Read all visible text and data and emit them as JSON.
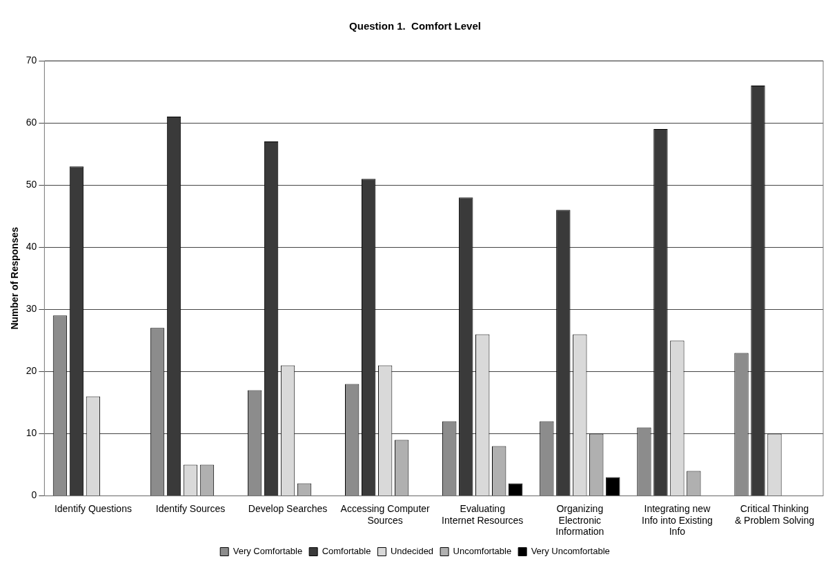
{
  "chart_data": {
    "type": "bar",
    "title": "Question 1.  Comfort Level",
    "ylabel": "Number of Responses",
    "categories": [
      "Identify Questions",
      "Identify Sources",
      "Develop Searches",
      "Accessing Computer Sources",
      "Evaluating Internet Resources",
      "Organizing Electronic Information",
      "Integrating new Info into Existing Info",
      "Critical Thinking & Problem Solving"
    ],
    "series": [
      {
        "name": "Very Comfortable",
        "color": "#8c8c8c",
        "values": [
          29,
          27,
          17,
          18,
          12,
          12,
          11,
          23
        ]
      },
      {
        "name": "Comfortable",
        "color": "#3a3a3a",
        "values": [
          53,
          61,
          57,
          51,
          48,
          46,
          59,
          66
        ]
      },
      {
        "name": "Undecided",
        "color": "#d9d9d9",
        "values": [
          16,
          5,
          21,
          21,
          26,
          26,
          25,
          10
        ]
      },
      {
        "name": "Uncomfortable",
        "color": "#b0b0b0",
        "values": [
          0,
          5,
          2,
          9,
          8,
          10,
          4,
          0
        ]
      },
      {
        "name": "Very Uncomfortable",
        "color": "#000000",
        "values": [
          0,
          0,
          0,
          0,
          2,
          3,
          0,
          0
        ]
      }
    ],
    "ylim": [
      0,
      70
    ],
    "yticks": [
      0,
      10,
      20,
      30,
      40,
      50,
      60,
      70
    ],
    "grid": "y",
    "legend": "bottom"
  }
}
